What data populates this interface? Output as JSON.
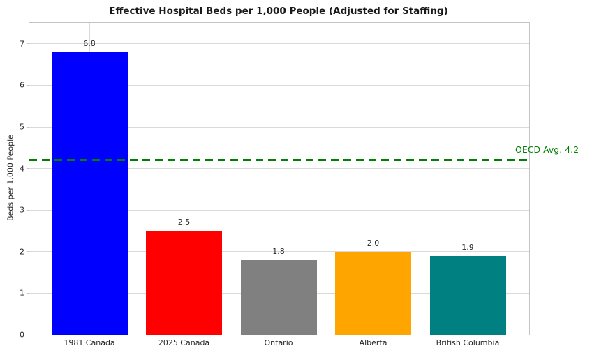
{
  "chart_data": {
    "type": "bar",
    "title": "Effective Hospital Beds per 1,000 People (Adjusted for Staffing)",
    "ylabel": "Beds per 1,000 People",
    "xlabel": "",
    "categories": [
      "1981 Canada",
      "2025 Canada",
      "Ontario",
      "Alberta",
      "British Columbia"
    ],
    "values": [
      6.8,
      2.5,
      1.8,
      2.0,
      1.9
    ],
    "value_labels": [
      "6.8",
      "2.5",
      "1.8",
      "2.0",
      "1.9"
    ],
    "bar_colors": [
      "#0000ff",
      "#ff0000",
      "#808080",
      "#ffa500",
      "#008080"
    ],
    "ylim": [
      0,
      7.5
    ],
    "yticks": [
      0,
      1,
      2,
      3,
      4,
      5,
      6,
      7
    ],
    "grid": true,
    "legend": null,
    "reference_line": {
      "value": 4.2,
      "label": "OECD Avg. 4.2",
      "color": "#008000",
      "style": "dashed"
    },
    "colors": {
      "grid": "#d9d9d9",
      "border": "#c4c4c4",
      "text": "#262626",
      "background": "#ffffff"
    }
  }
}
